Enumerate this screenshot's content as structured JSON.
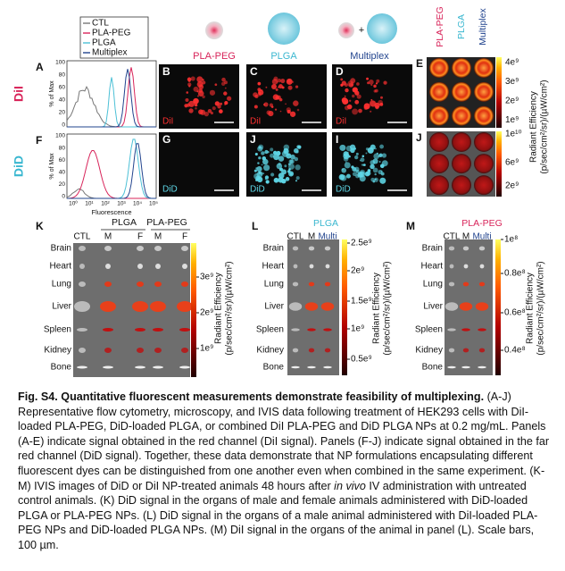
{
  "flow": {
    "legend": [
      "CTL",
      "PLA-PEG",
      "PLGA",
      "Multiplex"
    ],
    "letters": [
      "A",
      "F"
    ],
    "rows": [
      "DiI",
      "DiD"
    ],
    "y_label": "% of Max",
    "y_ticks": [
      100,
      80,
      60,
      40,
      20,
      0
    ],
    "x_label": "Fluorescence",
    "x_ticks": [
      "10⁰",
      "10¹",
      "10²",
      "10³",
      "10⁴",
      "10⁵"
    ]
  },
  "microscopy": {
    "headers": [
      "PLA-PEG",
      "PLGA",
      "Multiplex"
    ],
    "plus": "+",
    "letters": [
      "B",
      "C",
      "D",
      "G",
      "J",
      "I"
    ],
    "channels": [
      "DiI",
      "DiI",
      "DiI",
      "DiD",
      "DiD",
      "DiD"
    ]
  },
  "ivis_wells": {
    "letters": [
      "E",
      "J"
    ],
    "columns": [
      "PLA-PEG",
      "PLGA",
      "Multiplex"
    ],
    "ticks_e": [
      "4e⁹",
      "3e⁹",
      "2e⁹",
      "1e⁹"
    ],
    "ticks_j": [
      "1e¹⁰",
      "6e⁹",
      "2e⁹"
    ],
    "colorbar_title": [
      "Radiant Efficiency",
      "(p/sec/cm²/sr)/(µW/cm²)"
    ]
  },
  "panel_k": {
    "letter": "K",
    "groups": [
      "PLGA",
      "PLA-PEG"
    ],
    "columns": [
      "CTL",
      "M",
      "F",
      "M",
      "F"
    ],
    "organs": [
      "Brain",
      "Heart",
      "Lung",
      "Liver",
      "Spleen",
      "Kidney",
      "Bone"
    ],
    "ticks": [
      "3e⁹",
      "2e⁹",
      "1e⁹"
    ],
    "colorbar_title": [
      "Radiant Efficiency",
      "(p/sec/cm²/sr)/(µW/cm²)"
    ]
  },
  "panel_l": {
    "letter": "L",
    "header": "PLGA",
    "columns": [
      "CTL",
      "M",
      "Multi"
    ],
    "organs": [
      "Brain",
      "Heart",
      "Lung",
      "Liver",
      "Spleen",
      "Kidney",
      "Bone"
    ],
    "ticks": [
      "2.5e⁹",
      "2e⁹",
      "1.5e⁹",
      "1e⁹",
      "0.5e⁹"
    ],
    "colorbar_title": [
      "Radiant Efficiency",
      "(p/sec/cm²/sr)/(µW/cm²)"
    ]
  },
  "panel_m": {
    "letter": "M",
    "header": "PLA-PEG",
    "columns": [
      "CTL",
      "M",
      "Multi"
    ],
    "organs": [
      "Brain",
      "Heart",
      "Lung",
      "Liver",
      "Spleen",
      "Kidney",
      "Bone"
    ],
    "ticks": [
      "1e⁸",
      "0.8e⁸",
      "0.6e⁸",
      "0.4e⁸"
    ],
    "colorbar_title": [
      "Radiant Efficiency",
      "(p/sec/cm²/sr)/(µW/cm²)"
    ]
  },
  "caption": {
    "title": "Fig. S4.  Quantitative fluorescent measurements demonstrate feasibility of multiplexing.",
    "text_1": " (A-J) Representative flow cytometry, microscopy, and IVIS data following treatment of HEK293 cells with DiI-loaded PLA-PEG, DiD-loaded PLGA, or combined DiI PLA-PEG and DiD PLGA NPs at 0.2 mg/mL. Panels (A-E) indicate signal obtained in the red channel (DiI signal). Panels (F-J) indicate signal obtained in the far red channel (DiD signal). Together, these data demonstrate that NP formulations encapsulating different fluorescent dyes can be distinguished from one another even when combined in the same experiment. (K-M) IVIS images of DiD or DiI NP-treated animals 48 hours after ",
    "emphasis": "in vivo",
    "text_2": " IV administration with untreated control animals. (K) DiD signal in the organs of male and female animals administered with DiD-loaded PLGA or PLA-PEG NPs. (L) DiD signal in the organs of a male animal administered with DiI-loaded PLA-PEG NPs and DiD-loaded PLGA NPs. (M) DiI signal in the organs of the animal in panel (L). Scale bars, 100 µm."
  }
}
